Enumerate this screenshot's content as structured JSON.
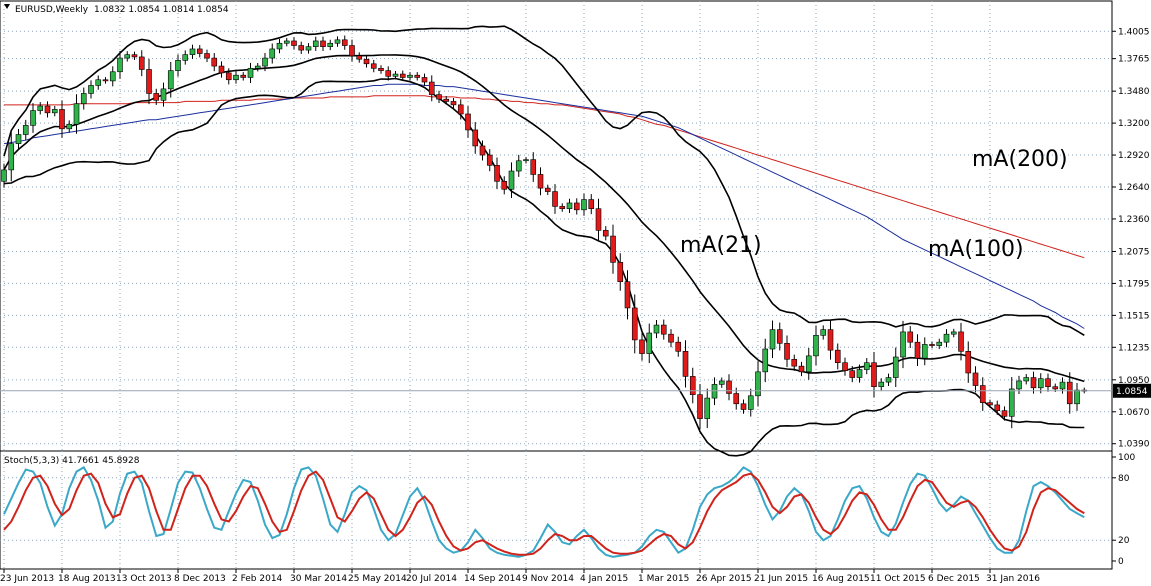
{
  "window": {
    "symbol_label": "EURUSD,Weekly",
    "ohlc_label": "1.0832 1.0854 1.0814 1.0854",
    "stoch_label": "Stoch(5,3,3) 41.7661 45.8928",
    "current_price_label": "1.0854"
  },
  "colors": {
    "bull": "#2fb34a",
    "bear": "#e01b1b",
    "ma100": "#1b2f9e",
    "ma200": "#d0231b",
    "bands": "#000000",
    "stoch_main": "#3aa8c8",
    "stoch_signal": "#d0231b",
    "grid": "#8ea4b8"
  },
  "chart_data": [
    {
      "type": "candlestick",
      "title": "EURUSD,Weekly",
      "x_tick_labels": [
        "23 Jun 2013",
        "18 Aug 2013",
        "13 Oct 2013",
        "8 Dec 2013",
        "2 Feb 2014",
        "30 Mar 2014",
        "25 May 2014",
        "20 Jul 2014",
        "14 Sep 2014",
        "9 Nov 2014",
        "4 Jan 2015",
        "1 Mar 2015",
        "26 Apr 2015",
        "21 Jun 2015",
        "16 Aug 2015",
        "11 Oct 2015",
        "6 Dec 2015",
        "31 Jan 2016"
      ],
      "y_tick_labels": [
        "1.4005",
        "1.3765",
        "1.3480",
        "1.3200",
        "1.2920",
        "1.2640",
        "1.2360",
        "1.2075",
        "1.1795",
        "1.1515",
        "1.1235",
        "1.0950",
        "1.0670",
        "1.0390"
      ],
      "ylim": [
        1.037,
        1.413
      ],
      "grid": true,
      "annotations": [
        "mA(21)",
        "mA(100)",
        "mA(200)"
      ],
      "close": [
        1.279,
        1.302,
        1.31,
        1.318,
        1.331,
        1.335,
        1.329,
        1.332,
        1.315,
        1.319,
        1.337,
        1.346,
        1.353,
        1.358,
        1.357,
        1.365,
        1.377,
        1.38,
        1.378,
        1.367,
        1.346,
        1.34,
        1.35,
        1.366,
        1.375,
        1.38,
        1.385,
        1.381,
        1.377,
        1.37,
        1.364,
        1.358,
        1.362,
        1.36,
        1.368,
        1.37,
        1.377,
        1.385,
        1.39,
        1.392,
        1.388,
        1.384,
        1.387,
        1.392,
        1.387,
        1.39,
        1.393,
        1.388,
        1.379,
        1.376,
        1.372,
        1.368,
        1.366,
        1.361,
        1.363,
        1.36,
        1.362,
        1.36,
        1.356,
        1.345,
        1.341,
        1.339,
        1.336,
        1.328,
        1.314,
        1.3,
        1.292,
        1.283,
        1.269,
        1.262,
        1.278,
        1.287,
        1.288,
        1.275,
        1.263,
        1.26,
        1.247,
        1.245,
        1.25,
        1.244,
        1.253,
        1.245,
        1.226,
        1.221,
        1.198,
        1.181,
        1.158,
        1.13,
        1.118,
        1.136,
        1.143,
        1.135,
        1.128,
        1.12,
        1.098,
        1.082,
        1.061,
        1.079,
        1.091,
        1.094,
        1.083,
        1.074,
        1.069,
        1.081,
        1.102,
        1.122,
        1.139,
        1.127,
        1.113,
        1.107,
        1.102,
        1.116,
        1.134,
        1.139,
        1.121,
        1.11,
        1.103,
        1.097,
        1.104,
        1.11,
        1.089,
        1.093,
        1.097,
        1.115,
        1.137,
        1.128,
        1.114,
        1.126,
        1.125,
        1.128,
        1.135,
        1.137,
        1.12,
        1.101,
        1.09,
        1.075,
        1.073,
        1.068,
        1.063,
        1.087,
        1.094,
        1.097,
        1.088,
        1.096,
        1.089,
        1.087,
        1.093,
        1.074,
        1.086,
        1.0854
      ],
      "series": [
        {
          "name": "mA(100)",
          "values": [
            1.302,
            1.303,
            1.304,
            1.305,
            1.307,
            1.308,
            1.309,
            1.31,
            1.311,
            1.312,
            1.313,
            1.314,
            1.315,
            1.316,
            1.317,
            1.318,
            1.319,
            1.32,
            1.321,
            1.322,
            1.323,
            1.323,
            1.324,
            1.325,
            1.326,
            1.327,
            1.328,
            1.329,
            1.33,
            1.331,
            1.332,
            1.333,
            1.334,
            1.335,
            1.336,
            1.337,
            1.338,
            1.339,
            1.34,
            1.341,
            1.342,
            1.343,
            1.344,
            1.345,
            1.346,
            1.347,
            1.348,
            1.349,
            1.35,
            1.351,
            1.352,
            1.353,
            1.353,
            1.354,
            1.354,
            1.354,
            1.354,
            1.354,
            1.353,
            1.353,
            1.353,
            1.352,
            1.352,
            1.351,
            1.35,
            1.349,
            1.348,
            1.347,
            1.346,
            1.345,
            1.344,
            1.343,
            1.342,
            1.341,
            1.34,
            1.339,
            1.338,
            1.337,
            1.336,
            1.335,
            1.334,
            1.333,
            1.332,
            1.331,
            1.33,
            1.329,
            1.328,
            1.327,
            1.326,
            1.324,
            1.322,
            1.32,
            1.318,
            1.316,
            1.313,
            1.31,
            1.307,
            1.304,
            1.301,
            1.298,
            1.295,
            1.292,
            1.289,
            1.286,
            1.283,
            1.28,
            1.277,
            1.274,
            1.271,
            1.268,
            1.265,
            1.262,
            1.259,
            1.256,
            1.253,
            1.25,
            1.247,
            1.244,
            1.241,
            1.238,
            1.234,
            1.23,
            1.226,
            1.222,
            1.218,
            1.215,
            1.212,
            1.209,
            1.206,
            1.203,
            1.2,
            1.197,
            1.194,
            1.191,
            1.188,
            1.185,
            1.182,
            1.179,
            1.176,
            1.173,
            1.17,
            1.167,
            1.164,
            1.16,
            1.157,
            1.154,
            1.15,
            1.147,
            1.144,
            1.14
          ]
        },
        {
          "name": "mA(200)",
          "values": [
            1.336,
            1.336,
            1.336,
            1.336,
            1.336,
            1.336,
            1.336,
            1.336,
            1.336,
            1.336,
            1.337,
            1.337,
            1.337,
            1.337,
            1.337,
            1.337,
            1.337,
            1.337,
            1.338,
            1.338,
            1.338,
            1.338,
            1.338,
            1.338,
            1.338,
            1.339,
            1.339,
            1.339,
            1.339,
            1.339,
            1.34,
            1.34,
            1.34,
            1.34,
            1.34,
            1.341,
            1.341,
            1.341,
            1.341,
            1.341,
            1.342,
            1.342,
            1.342,
            1.342,
            1.342,
            1.343,
            1.343,
            1.343,
            1.343,
            1.343,
            1.343,
            1.344,
            1.344,
            1.344,
            1.344,
            1.344,
            1.344,
            1.344,
            1.344,
            1.343,
            1.343,
            1.343,
            1.343,
            1.342,
            1.342,
            1.342,
            1.341,
            1.341,
            1.34,
            1.34,
            1.339,
            1.339,
            1.338,
            1.338,
            1.337,
            1.337,
            1.336,
            1.336,
            1.335,
            1.334,
            1.333,
            1.332,
            1.331,
            1.33,
            1.329,
            1.328,
            1.326,
            1.325,
            1.323,
            1.321,
            1.319,
            1.318,
            1.316,
            1.314,
            1.312,
            1.31,
            1.308,
            1.306,
            1.304,
            1.302,
            1.3,
            1.298,
            1.296,
            1.294,
            1.292,
            1.29,
            1.288,
            1.286,
            1.284,
            1.282,
            1.28,
            1.278,
            1.276,
            1.274,
            1.272,
            1.27,
            1.268,
            1.266,
            1.264,
            1.262,
            1.26,
            1.258,
            1.256,
            1.254,
            1.252,
            1.25,
            1.248,
            1.246,
            1.244,
            1.242,
            1.24,
            1.238,
            1.236,
            1.234,
            1.232,
            1.23,
            1.228,
            1.226,
            1.224,
            1.222,
            1.22,
            1.218,
            1.216,
            1.214,
            1.212,
            1.21,
            1.208,
            1.206,
            1.204,
            1.202
          ]
        }
      ]
    },
    {
      "type": "line",
      "title": "Stoch(5,3,3) 41.7661 45.8928",
      "y_tick_labels": [
        "100",
        "80",
        "20",
        "0"
      ],
      "ylim": [
        0,
        100
      ],
      "series": [
        {
          "name": "main",
          "values": [
            45,
            60,
            75,
            88,
            86,
            75,
            52,
            34,
            45,
            70,
            86,
            90,
            78,
            58,
            32,
            38,
            65,
            84,
            86,
            75,
            48,
            24,
            26,
            50,
            75,
            86,
            85,
            70,
            50,
            32,
            30,
            48,
            65,
            78,
            76,
            58,
            35,
            22,
            25,
            45,
            70,
            88,
            90,
            82,
            60,
            35,
            28,
            45,
            66,
            72,
            68,
            50,
            30,
            20,
            26,
            44,
            62,
            70,
            58,
            38,
            20,
            12,
            8,
            10,
            18,
            30,
            22,
            12,
            8,
            6,
            5,
            4,
            6,
            10,
            22,
            35,
            28,
            18,
            16,
            24,
            30,
            22,
            12,
            6,
            4,
            5,
            6,
            8,
            14,
            24,
            30,
            28,
            18,
            8,
            12,
            30,
            52,
            64,
            70,
            72,
            76,
            82,
            90,
            86,
            72,
            54,
            40,
            48,
            62,
            70,
            64,
            48,
            28,
            20,
            24,
            40,
            58,
            70,
            72,
            60,
            42,
            28,
            24,
            36,
            56,
            74,
            84,
            82,
            70,
            56,
            48,
            54,
            62,
            58,
            46,
            34,
            22,
            12,
            8,
            8,
            20,
            48,
            72,
            76,
            72,
            66,
            58,
            50,
            46,
            42
          ]
        },
        {
          "name": "signal",
          "values": [
            30,
            38,
            52,
            68,
            80,
            82,
            72,
            55,
            44,
            50,
            68,
            82,
            84,
            75,
            55,
            42,
            45,
            65,
            80,
            82,
            70,
            48,
            30,
            30,
            50,
            70,
            82,
            82,
            72,
            55,
            40,
            38,
            48,
            62,
            72,
            70,
            55,
            38,
            28,
            30,
            48,
            68,
            82,
            86,
            78,
            60,
            42,
            38,
            48,
            60,
            66,
            60,
            45,
            30,
            24,
            30,
            42,
            56,
            62,
            54,
            38,
            24,
            14,
            10,
            12,
            18,
            20,
            16,
            12,
            9,
            7,
            6,
            6,
            7,
            12,
            20,
            26,
            24,
            20,
            20,
            24,
            24,
            18,
            12,
            8,
            7,
            7,
            8,
            10,
            16,
            22,
            26,
            24,
            16,
            12,
            18,
            32,
            48,
            60,
            68,
            72,
            76,
            82,
            84,
            78,
            66,
            52,
            46,
            52,
            62,
            64,
            56,
            42,
            30,
            26,
            32,
            44,
            58,
            66,
            64,
            54,
            40,
            30,
            30,
            42,
            58,
            72,
            78,
            76,
            66,
            56,
            52,
            56,
            58,
            52,
            42,
            30,
            20,
            12,
            10,
            14,
            28,
            50,
            66,
            70,
            68,
            62,
            56,
            50,
            46
          ]
        }
      ]
    }
  ]
}
